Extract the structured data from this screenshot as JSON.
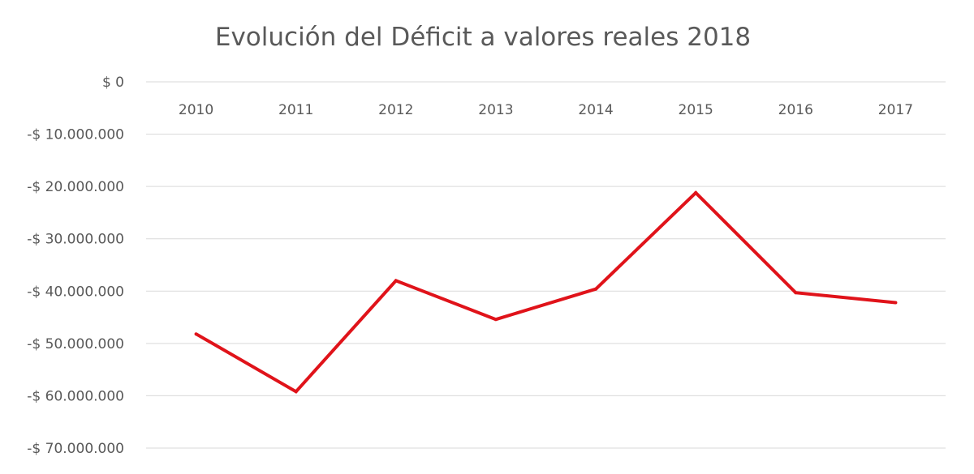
{
  "chart_data": {
    "type": "line",
    "title": "Evolución del Déficit a valores reales 2018",
    "xlabel": "",
    "ylabel": "",
    "categories": [
      "2010",
      "2011",
      "2012",
      "2013",
      "2014",
      "2015",
      "2016",
      "2017"
    ],
    "series": [
      {
        "values": [
          -48200000,
          -59200000,
          -38000000,
          -45400000,
          -39600000,
          -21200000,
          -40300000,
          -42200000
        ],
        "color": "#e0131a"
      }
    ],
    "ylim": [
      -70000000,
      0
    ],
    "y_ticks": [
      0,
      -10000000,
      -20000000,
      -30000000,
      -40000000,
      -50000000,
      -60000000,
      -70000000
    ],
    "y_tick_labels": [
      "$ 0",
      "-$ 10.000.000",
      "-$ 20.000.000",
      "-$ 30.000.000",
      "-$ 40.000.000",
      "-$ 50.000.000",
      "-$ 60.000.000",
      "-$ 70.000.000"
    ],
    "x_axis_position": "top",
    "grid": true,
    "legend": "none"
  }
}
